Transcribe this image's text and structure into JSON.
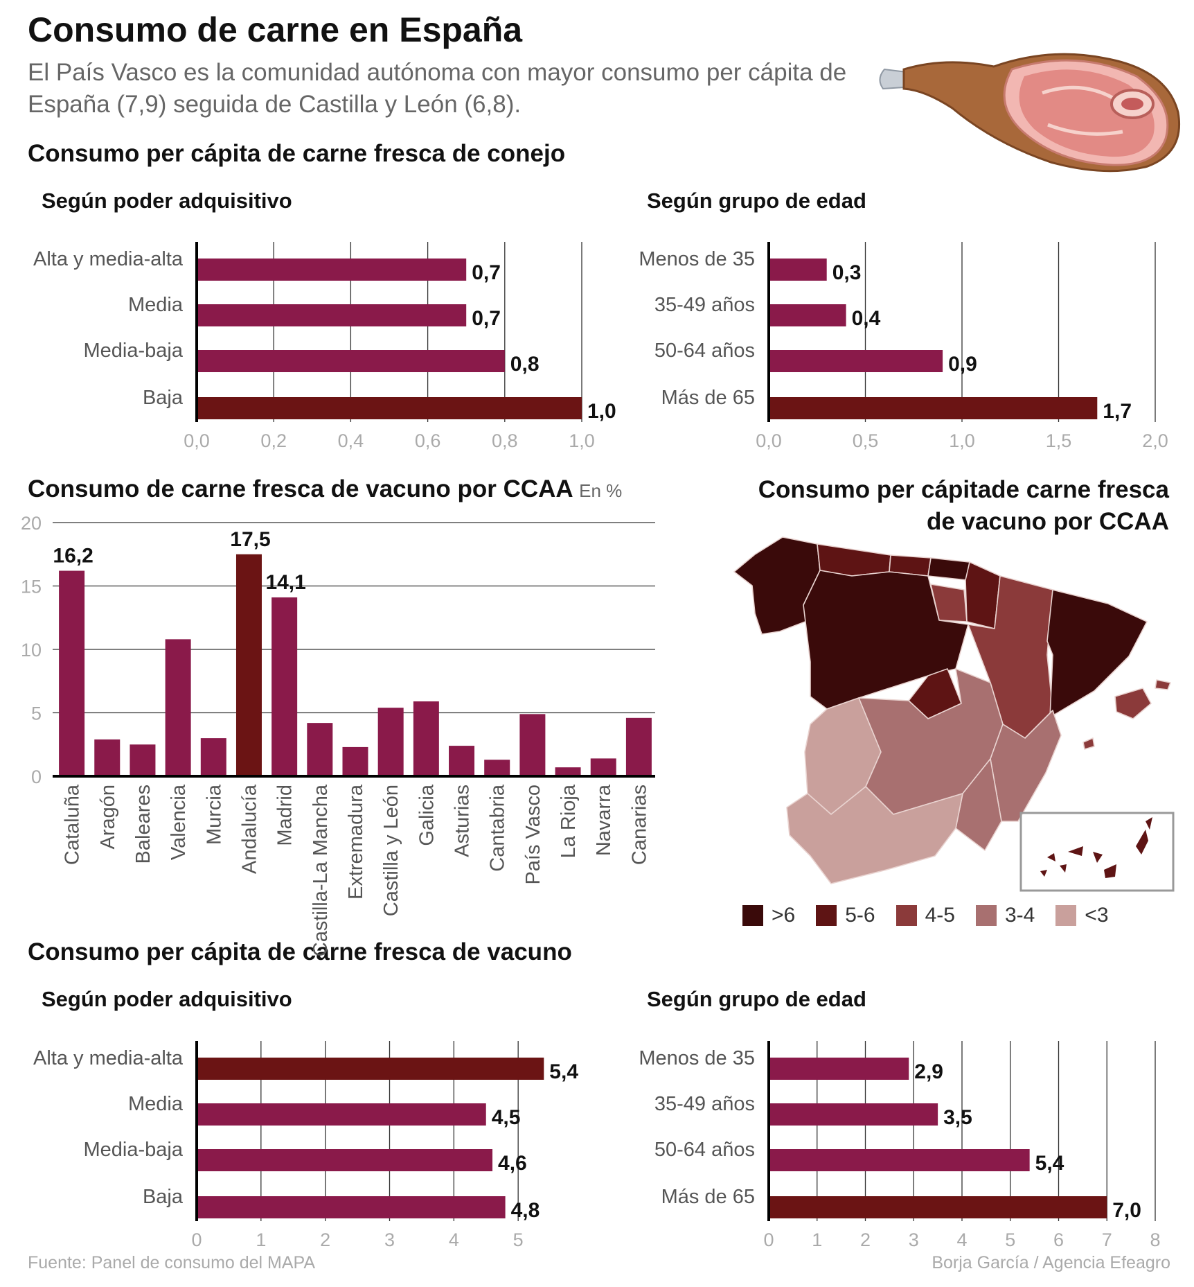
{
  "header": {
    "title": "Consumo de carne en España",
    "subtitle": "El País Vasco es la comunidad autónoma con mayor consumo per cápita de España (7,9) seguida de Castilla y León (6,8)."
  },
  "sections": {
    "rabbit": "Consumo per cápita de carne fresca de conejo",
    "beef": "Consumo per cápita de carne fresca de vacuno"
  },
  "colors": {
    "bar": "#8a1a4a",
    "highlight": "#6b1414",
    "map_gt6": "#3a0a0a",
    "map_5_6": "#5e1414",
    "map_4_5": "#8b3a3a",
    "map_3_4": "#a87070",
    "map_lt3": "#c9a09c"
  },
  "map": {
    "title": "Consumo per cápitade carne fresca de vacuno por CCAA",
    "legend": [
      {
        "label": ">6",
        "color": "#3a0a0a"
      },
      {
        "label": "5-6",
        "color": "#5e1414"
      },
      {
        "label": "4-5",
        "color": "#8b3a3a"
      },
      {
        "label": "3-4",
        "color": "#a87070"
      },
      {
        "label": "<3",
        "color": "#c9a09c"
      }
    ]
  },
  "footer": {
    "source": "Fuente: Panel de consumo del MAPA",
    "credit": "Borja García / Agencia Efeagro"
  },
  "chart_data": [
    {
      "type": "bar",
      "orientation": "horizontal",
      "title": "Según poder adquisitivo",
      "categories": [
        "Alta y media-alta",
        "Media",
        "Media-baja",
        "Baja"
      ],
      "values": [
        0.7,
        0.7,
        0.8,
        1.0
      ],
      "value_labels": [
        "0,7",
        "0,7",
        "0,8",
        "1,0"
      ],
      "highlight_index": 3,
      "xlim": [
        0,
        1.0
      ],
      "ticks": [
        0,
        0.2,
        0.4,
        0.6,
        0.8,
        1.0
      ],
      "tick_labels": [
        "0,0",
        "0,2",
        "0,4",
        "0,6",
        "0,8",
        "1,0"
      ],
      "grid": true
    },
    {
      "type": "bar",
      "orientation": "horizontal",
      "title": "Según grupo de edad",
      "categories": [
        "Menos de 35",
        "35-49 años",
        "50-64 años",
        "Más de 65"
      ],
      "values": [
        0.3,
        0.4,
        0.9,
        1.7
      ],
      "value_labels": [
        "0,3",
        "0,4",
        "0,9",
        "1,7"
      ],
      "highlight_index": 3,
      "xlim": [
        0,
        2.0
      ],
      "ticks": [
        0,
        0.5,
        1.0,
        1.5,
        2.0
      ],
      "tick_labels": [
        "0,0",
        "0,5",
        "1,0",
        "1,5",
        "2,0"
      ],
      "grid": true
    },
    {
      "type": "bar",
      "orientation": "vertical",
      "title": "Consumo de carne fresca de vacuno por CCAA",
      "unit": "En %",
      "categories": [
        "Cataluña",
        "Aragón",
        "Baleares",
        "Valencia",
        "Murcia",
        "Andalucía",
        "Madrid",
        "Castilla-La Mancha",
        "Extremadura",
        "Castilla y León",
        "Galicia",
        "Asturias",
        "Cantabria",
        "País Vasco",
        "La Rioja",
        "Navarra",
        "Canarias"
      ],
      "values": [
        16.2,
        2.9,
        2.5,
        10.8,
        3.0,
        17.5,
        14.1,
        4.2,
        2.3,
        5.4,
        5.9,
        2.4,
        1.3,
        4.9,
        0.7,
        1.4,
        4.6
      ],
      "value_labels": [
        "16,2",
        "",
        "",
        "",
        "",
        "17,5",
        "14,1",
        "",
        "",
        "",
        "",
        "",
        "",
        "",
        "",
        "",
        ""
      ],
      "highlight_index": 5,
      "ylim": [
        0,
        20
      ],
      "ticks": [
        0,
        5,
        10,
        15,
        20
      ],
      "tick_labels": [
        "0",
        "5",
        "10",
        "15",
        "20"
      ],
      "grid": true
    },
    {
      "type": "bar",
      "orientation": "horizontal",
      "title": "Según poder adquisitivo",
      "categories": [
        "Alta y media-alta",
        "Media",
        "Media-baja",
        "Baja"
      ],
      "values": [
        5.4,
        4.5,
        4.6,
        4.8
      ],
      "value_labels": [
        "5,4",
        "4,5",
        "4,6",
        "4,8"
      ],
      "highlight_index": 0,
      "xlim": [
        0,
        6
      ],
      "ticks": [
        0,
        1,
        2,
        3,
        4,
        5
      ],
      "tick_labels": [
        "0",
        "1",
        "2",
        "3",
        "4",
        "5"
      ],
      "grid": true
    },
    {
      "type": "bar",
      "orientation": "horizontal",
      "title": "Según grupo de edad",
      "categories": [
        "Menos de 35",
        "35-49 años",
        "50-64 años",
        "Más de 65"
      ],
      "values": [
        2.9,
        3.5,
        5.4,
        7.0
      ],
      "value_labels": [
        "2,9",
        "3,5",
        "5,4",
        "7,0"
      ],
      "highlight_index": 3,
      "xlim": [
        0,
        8
      ],
      "ticks": [
        0,
        1,
        2,
        3,
        4,
        5,
        6,
        7,
        8
      ],
      "tick_labels": [
        "0",
        "1",
        "2",
        "3",
        "4",
        "5",
        "6",
        "7",
        "8"
      ],
      "grid": true
    }
  ]
}
